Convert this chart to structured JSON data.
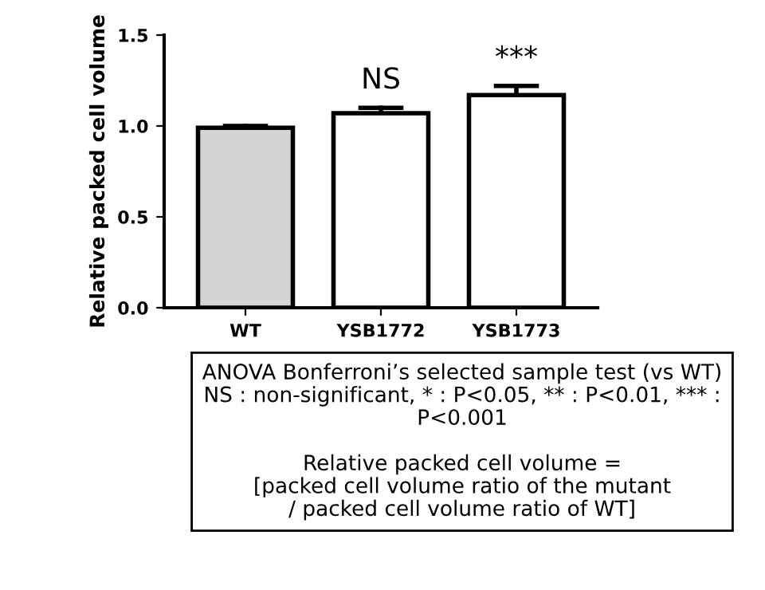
{
  "chart_data": {
    "type": "bar",
    "ylabel": "Relative packed cell volume",
    "categories": [
      "WT",
      "YSB1772",
      "YSB1773"
    ],
    "values": [
      0.99,
      1.07,
      1.17
    ],
    "colors": [
      "#d3d3d3",
      "#ffffff",
      "#ffffff"
    ],
    "errors": [
      [
        0.99,
        1.0
      ],
      [
        1.07,
        1.1
      ],
      [
        1.17,
        1.22
      ]
    ],
    "ylim": [
      0,
      1.5
    ],
    "yticks": [
      {
        "value": 0,
        "label": "0.0"
      },
      {
        "value": 0.5,
        "label": "0.5"
      },
      {
        "value": 1.0,
        "label": "1.0"
      },
      {
        "value": 1.5,
        "label": "1.5"
      }
    ],
    "grid": false,
    "legend": false,
    "annotations": [
      {
        "text": "NS",
        "x": "YSB1772",
        "y": 1.1
      },
      {
        "text": "***",
        "x": "YSB1773",
        "y": 1.22
      },
      "ANOVA Bonferroni’s selected sample test (vs WT)\nNS : non-significant, * : P<0.05, ** : P<0.01, *** :\nP<0.001\n\nRelative packed cell volume =\n[packed cell volume ratio of the mutant\n/ packed cell volume ratio of WT]"
    ]
  }
}
